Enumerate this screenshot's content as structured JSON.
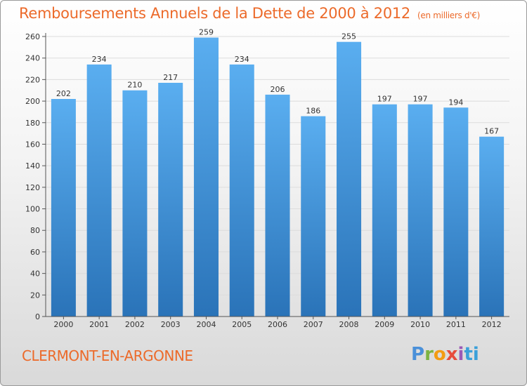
{
  "header": {
    "title": "Remboursements Annuels de la Dette de 2000 à 2012",
    "unit": "(en milliers d'€)"
  },
  "footer": {
    "city": "CLERMONT-EN-ARGONNE",
    "logo_letters": [
      "P",
      "r",
      "o",
      "x",
      "i",
      "ti"
    ]
  },
  "colors": {
    "title": "#ec6a2a",
    "bar_top": "#5aaef0",
    "bar_bottom": "#2a73b8",
    "grid": "#dcdcdc"
  },
  "chart_data": {
    "type": "bar",
    "categories": [
      "2000",
      "2001",
      "2002",
      "2003",
      "2004",
      "2005",
      "2006",
      "2007",
      "2008",
      "2009",
      "2010",
      "2011",
      "2012"
    ],
    "values": [
      202,
      234,
      210,
      217,
      259,
      234,
      206,
      186,
      255,
      197,
      197,
      194,
      167
    ],
    "data_labels": [
      "202",
      "234",
      "210",
      "217",
      "259",
      "234",
      "206",
      "186",
      "255",
      "197",
      "197",
      "194",
      "167"
    ],
    "yticks": [
      "0",
      "20",
      "40",
      "60",
      "80",
      "100",
      "120",
      "140",
      "160",
      "180",
      "200",
      "220",
      "240",
      "260"
    ],
    "ylim": [
      0,
      260
    ],
    "grid": true
  }
}
